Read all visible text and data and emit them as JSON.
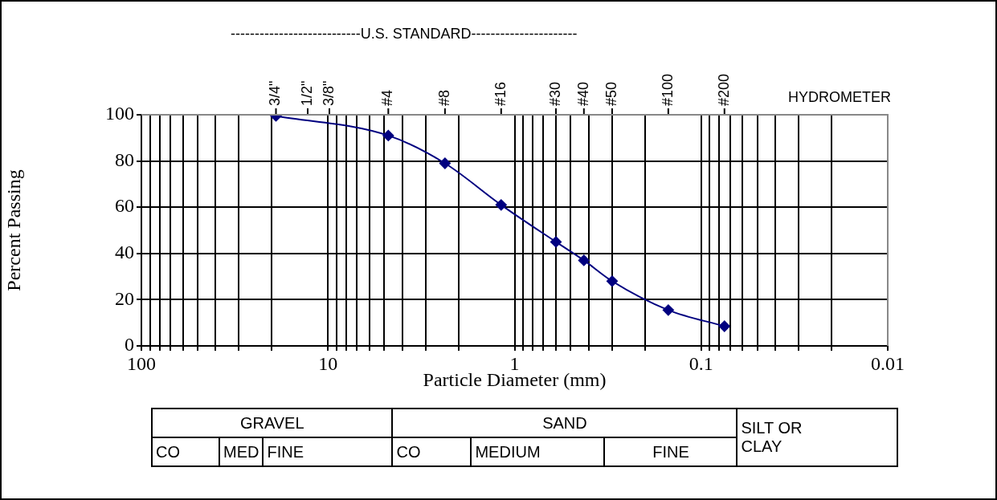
{
  "chart_data": {
    "type": "line",
    "xlabel": "Particle Diameter (mm)",
    "ylabel": "Percent Passing",
    "x": [
      19,
      4.75,
      2.36,
      1.18,
      0.6,
      0.425,
      0.3,
      0.15,
      0.075
    ],
    "series": [
      {
        "color": "#000080",
        "values": [
          99.5,
          91,
          79,
          61,
          45,
          37,
          28,
          15.5,
          8.5
        ]
      }
    ],
    "log": "x",
    "marker": "diamond",
    "line_style": "solid",
    "grid": true,
    "legend": false,
    "xlim": [
      100,
      0.01
    ],
    "xticks": [
      100,
      {
        "value": 90,
        "label": null
      },
      {
        "value": 80,
        "label": null
      },
      {
        "value": 70,
        "label": null
      },
      {
        "value": 60,
        "label": null
      },
      {
        "value": 50,
        "label": null
      },
      {
        "value": 40,
        "label": null
      },
      {
        "value": 30,
        "label": null
      },
      {
        "value": 20,
        "label": null
      },
      10,
      {
        "value": 9,
        "label": null
      },
      {
        "value": 8,
        "label": null
      },
      {
        "value": 7,
        "label": null
      },
      {
        "value": 6,
        "label": null
      },
      {
        "value": 5,
        "label": null
      },
      {
        "value": 4,
        "label": null
      },
      {
        "value": 3,
        "label": null
      },
      {
        "value": 2,
        "label": null
      },
      1,
      {
        "value": 0.9,
        "label": null
      },
      {
        "value": 0.8,
        "label": null
      },
      {
        "value": 0.7,
        "label": null
      },
      {
        "value": 0.6,
        "label": null
      },
      {
        "value": 0.5,
        "label": null
      },
      {
        "value": 0.4,
        "label": null
      },
      {
        "value": 0.3,
        "label": null
      },
      {
        "value": 0.2,
        "label": null
      },
      0.1,
      {
        "value": 0.09,
        "label": null
      },
      {
        "value": 0.08,
        "label": null
      },
      {
        "value": 0.07,
        "label": null
      },
      {
        "value": 0.06,
        "label": null
      },
      {
        "value": 0.05,
        "label": null
      },
      {
        "value": 0.04,
        "label": null
      },
      {
        "value": 0.03,
        "label": null
      },
      {
        "value": 0.02,
        "label": null
      },
      0.01
    ],
    "ylim": [
      0,
      100
    ],
    "yticks": [
      0,
      20,
      40,
      60,
      80,
      100
    ],
    "annotations": [
      "---------------------------U.S. STANDARD----------------------",
      "HYDROMETER",
      "GRAVEL",
      "SAND",
      "SILT OR",
      "CLAY",
      "CO",
      "MED",
      "FINE",
      "CO",
      "MEDIUM",
      "FINE",
      {
        "text": "3/4\"",
        "x": 19
      },
      "1/2\"",
      "3/8\"",
      {
        "text": "#4",
        "x": 4.75
      },
      {
        "text": "#8",
        "x": 2.36
      },
      {
        "text": "#16",
        "x": 1.18
      },
      {
        "text": "#30",
        "x": 0.6
      },
      {
        "text": "#40",
        "x": 0.425
      },
      {
        "text": "#50",
        "x": 0.3
      },
      {
        "text": "#100",
        "x": 0.15
      },
      {
        "text": "#200",
        "x": 0.075
      }
    ]
  }
}
